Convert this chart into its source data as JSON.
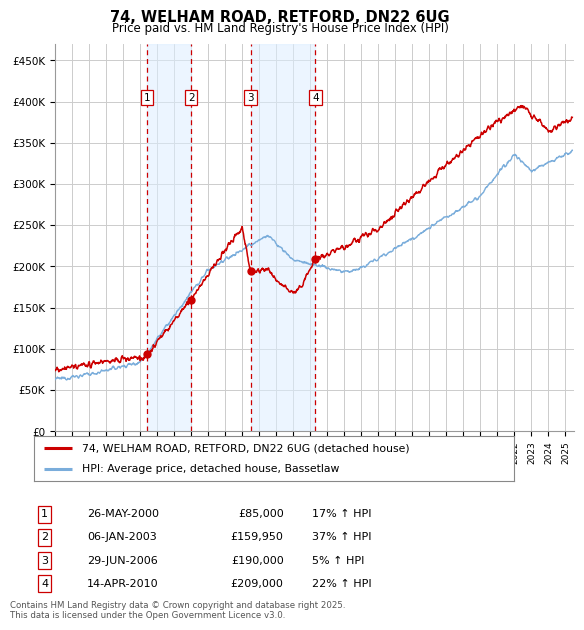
{
  "title": "74, WELHAM ROAD, RETFORD, DN22 6UG",
  "subtitle": "Price paid vs. HM Land Registry's House Price Index (HPI)",
  "ylim": [
    0,
    470000
  ],
  "xlim_start": 1995.0,
  "xlim_end": 2025.5,
  "sale_markers": [
    {
      "num": 1,
      "date": "26-MAY-2000",
      "price": 85000,
      "hpi_pct": "17% ↑ HPI",
      "x": 2000.4
    },
    {
      "num": 2,
      "date": "06-JAN-2003",
      "price": 159950,
      "hpi_pct": "37% ↑ HPI",
      "x": 2003.0
    },
    {
      "num": 3,
      "date": "29-JUN-2006",
      "price": 190000,
      "hpi_pct": "5% ↑ HPI",
      "x": 2006.5
    },
    {
      "num": 4,
      "date": "14-APR-2010",
      "price": 209000,
      "hpi_pct": "22% ↑ HPI",
      "x": 2010.3
    }
  ],
  "legend_entries": [
    {
      "label": "74, WELHAM ROAD, RETFORD, DN22 6UG (detached house)",
      "color": "#cc0000"
    },
    {
      "label": "HPI: Average price, detached house, Bassetlaw",
      "color": "#7aaddb"
    }
  ],
  "footer": "Contains HM Land Registry data © Crown copyright and database right 2025.\nThis data is licensed under the Open Government Licence v3.0.",
  "bg_color": "#ffffff",
  "grid_color": "#cccccc",
  "hpi_line_color": "#7aaddb",
  "sale_line_color": "#cc0000",
  "shade_color": "#ddeeff"
}
